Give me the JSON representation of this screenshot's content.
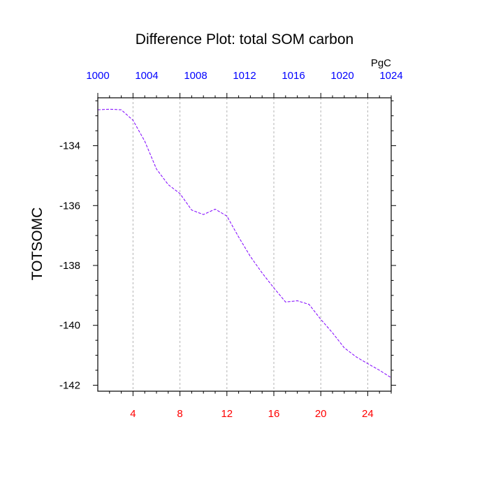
{
  "chart_data": {
    "type": "line",
    "title": "Difference Plot: total SOM carbon",
    "ylabel": "TOTSOMC",
    "top_axis_unit": "PgC",
    "xlim": [
      1,
      26
    ],
    "ylim": [
      -142.2,
      -132.4
    ],
    "x_ticks": [
      4,
      8,
      12,
      16,
      20,
      24
    ],
    "top_axis_ticks": [
      "1000",
      "1004",
      "1008",
      "1012",
      "1016",
      "1020",
      "1024"
    ],
    "y_ticks": [
      -134,
      -136,
      -138,
      -140,
      -142
    ],
    "y_tick_labels": [
      "-134",
      "-136",
      "-138",
      "-140",
      "-142"
    ],
    "x_tick_color": "#ff0000",
    "top_tick_color": "#0000ff",
    "line_color": "#7f00ff",
    "grid": "vertical dashed at x ticks",
    "series": [
      {
        "x": [
          1,
          2,
          3,
          4,
          5,
          6,
          7,
          8,
          9,
          10,
          11,
          12,
          13,
          14,
          15,
          16,
          17,
          18,
          19,
          20,
          21,
          22,
          23,
          24,
          25,
          26
        ],
        "values": [
          -132.8,
          -132.78,
          -132.8,
          -133.15,
          -133.85,
          -134.78,
          -135.3,
          -135.6,
          -136.15,
          -136.3,
          -136.12,
          -136.35,
          -137.05,
          -137.7,
          -138.25,
          -138.75,
          -139.22,
          -139.18,
          -139.3,
          -139.8,
          -140.25,
          -140.75,
          -141.05,
          -141.28,
          -141.5,
          -141.75
        ]
      }
    ]
  }
}
